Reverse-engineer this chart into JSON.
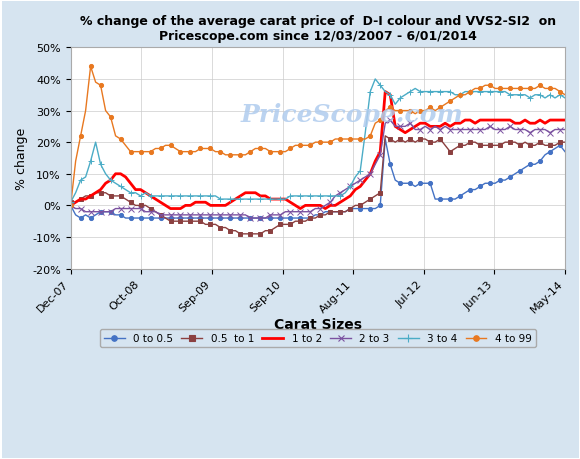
{
  "title": "% change of the average carat price of  D-I colour and VVS2-SI2  on\nPricescope.com since 12/03/2007 - 6/01/2014",
  "xlabel": "Carat Sizes",
  "ylabel": "% change",
  "watermark": "PriceScope.com",
  "ylim": [
    -20,
    50
  ],
  "yticks": [
    -20,
    -10,
    0,
    10,
    20,
    30,
    40,
    50
  ],
  "xtick_labels": [
    "Dec-07",
    "Oct-08",
    "Sep-09",
    "Sep-10",
    "Aug-11",
    "Jul-12",
    "Jun-13",
    "May-14"
  ],
  "legend_labels": [
    "0 to 0.5",
    "0.5  to 1",
    "1 to 2",
    "2 to 3",
    "3 to 4",
    "4 to 99"
  ],
  "colors": {
    "0to05": "#4472C4",
    "05to1": "#8B4040",
    "1to2": "#FF0000",
    "2to3": "#7B52A0",
    "3to4": "#4BACC6",
    "4to99": "#E87820"
  },
  "bg_color": "#D6E4F0",
  "plot_bg": "#FFFFFF",
  "border_color": "#5B8CC4",
  "series": {
    "0to05": [
      0,
      -3,
      -4,
      -3,
      -4,
      -3,
      -2,
      -2,
      -2,
      -3,
      -3,
      -4,
      -4,
      -4,
      -4,
      -4,
      -4,
      -4,
      -4,
      -4,
      -4,
      -4,
      -4,
      -4,
      -4,
      -4,
      -4,
      -4,
      -4,
      -4,
      -4,
      -4,
      -4,
      -4,
      -4,
      -4,
      -4,
      -4,
      -4,
      -4,
      -4,
      -4,
      -4,
      -4,
      -4,
      -4,
      -4,
      -4,
      -4,
      -3,
      -3,
      -2,
      -2,
      -2,
      -2,
      -2,
      -1,
      -1,
      -1,
      -1,
      -1,
      -1,
      0,
      21,
      13,
      8,
      7,
      7,
      7,
      6,
      7,
      7,
      7,
      2,
      2,
      2,
      2,
      2,
      3,
      4,
      5,
      5,
      6,
      7,
      7,
      7,
      8,
      8,
      9,
      10,
      11,
      12,
      13,
      13,
      14,
      16,
      17,
      18,
      19,
      17
    ],
    "05to1": [
      1,
      1,
      2,
      3,
      3,
      4,
      4,
      4,
      3,
      3,
      3,
      2,
      1,
      0,
      0,
      0,
      -1,
      -2,
      -3,
      -4,
      -5,
      -5,
      -5,
      -5,
      -5,
      -5,
      -5,
      -6,
      -6,
      -6,
      -7,
      -7,
      -8,
      -8,
      -9,
      -9,
      -9,
      -9,
      -9,
      -8,
      -8,
      -7,
      -6,
      -6,
      -6,
      -5,
      -5,
      -5,
      -4,
      -4,
      -3,
      -3,
      -2,
      -2,
      -2,
      -2,
      -1,
      0,
      0,
      1,
      2,
      3,
      4,
      22,
      21,
      20,
      21,
      20,
      21,
      20,
      21,
      21,
      20,
      20,
      21,
      19,
      17,
      18,
      19,
      19,
      20,
      20,
      19,
      19,
      19,
      19,
      19,
      20,
      20,
      20,
      19,
      20,
      19,
      19,
      20,
      19,
      19,
      19,
      20,
      20
    ],
    "1to2": [
      0,
      1,
      2,
      2,
      3,
      4,
      5,
      7,
      8,
      10,
      10,
      9,
      7,
      5,
      5,
      4,
      3,
      2,
      1,
      0,
      -1,
      -1,
      -1,
      0,
      0,
      1,
      1,
      1,
      0,
      0,
      0,
      0,
      1,
      2,
      3,
      4,
      4,
      4,
      3,
      3,
      2,
      2,
      2,
      2,
      1,
      0,
      -1,
      0,
      0,
      0,
      0,
      -1,
      0,
      0,
      1,
      2,
      3,
      5,
      6,
      8,
      10,
      14,
      17,
      36,
      35,
      25,
      24,
      23,
      24,
      25,
      26,
      26,
      25,
      25,
      25,
      26,
      25,
      26,
      26,
      27,
      27,
      26,
      27,
      27,
      27,
      27,
      27,
      27,
      27,
      26,
      26,
      27,
      26,
      26,
      27,
      26,
      27,
      27,
      27,
      27
    ],
    "2to3": [
      0,
      -1,
      -1,
      -2,
      -2,
      -2,
      -2,
      -2,
      -2,
      -1,
      -1,
      -1,
      -1,
      -1,
      -1,
      -2,
      -2,
      -2,
      -3,
      -3,
      -3,
      -3,
      -3,
      -3,
      -3,
      -3,
      -3,
      -3,
      -3,
      -3,
      -3,
      -3,
      -3,
      -3,
      -3,
      -3,
      -4,
      -4,
      -4,
      -4,
      -3,
      -3,
      -3,
      -2,
      -2,
      -2,
      -2,
      -2,
      -2,
      -1,
      -1,
      0,
      1,
      3,
      4,
      5,
      6,
      7,
      8,
      9,
      10,
      13,
      16,
      26,
      27,
      25,
      25,
      25,
      26,
      24,
      24,
      25,
      24,
      25,
      24,
      25,
      24,
      24,
      24,
      24,
      24,
      24,
      24,
      24,
      25,
      24,
      24,
      24,
      25,
      24,
      24,
      24,
      23,
      24,
      24,
      24,
      23,
      24,
      24,
      24
    ],
    "3to4": [
      1,
      4,
      8,
      9,
      14,
      20,
      13,
      10,
      8,
      7,
      6,
      5,
      4,
      4,
      3,
      4,
      3,
      3,
      3,
      3,
      3,
      3,
      3,
      3,
      3,
      3,
      3,
      3,
      3,
      3,
      2,
      2,
      2,
      2,
      2,
      2,
      2,
      2,
      2,
      2,
      2,
      2,
      2,
      2,
      3,
      3,
      3,
      3,
      3,
      3,
      3,
      3,
      3,
      3,
      3,
      4,
      6,
      9,
      11,
      23,
      36,
      40,
      38,
      36,
      35,
      32,
      34,
      35,
      36,
      37,
      36,
      36,
      36,
      36,
      36,
      36,
      36,
      35,
      35,
      36,
      36,
      36,
      36,
      36,
      36,
      36,
      36,
      36,
      35,
      35,
      35,
      35,
      34,
      35,
      35,
      34,
      35,
      34,
      35,
      34
    ],
    "4to99": [
      0,
      14,
      22,
      30,
      44,
      39,
      38,
      30,
      28,
      22,
      21,
      19,
      17,
      17,
      17,
      17,
      17,
      18,
      18,
      19,
      19,
      18,
      17,
      17,
      17,
      17,
      18,
      18,
      18,
      17,
      17,
      16,
      16,
      16,
      16,
      16,
      17,
      18,
      18,
      18,
      17,
      17,
      17,
      17,
      18,
      19,
      19,
      19,
      19,
      20,
      20,
      20,
      20,
      21,
      21,
      21,
      21,
      21,
      21,
      21,
      22,
      26,
      27,
      30,
      31,
      30,
      30,
      30,
      30,
      29,
      30,
      30,
      31,
      30,
      31,
      32,
      33,
      34,
      35,
      35,
      36,
      37,
      37,
      38,
      38,
      37,
      37,
      37,
      37,
      37,
      37,
      37,
      37,
      37,
      38,
      37,
      37,
      37,
      36,
      35
    ]
  }
}
